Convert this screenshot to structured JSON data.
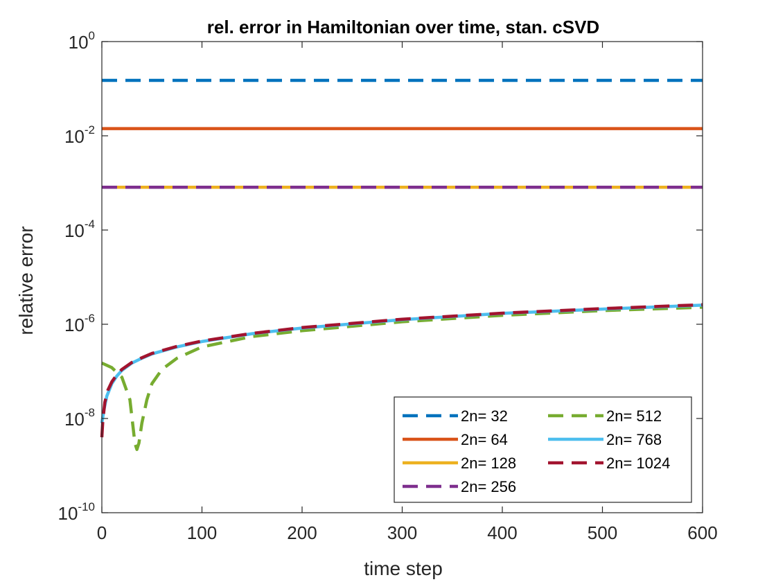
{
  "chart_data": {
    "type": "line",
    "title": "rel. error in Hamiltonian over time, stan. cSVD",
    "xlabel": "time step",
    "ylabel": "relative error",
    "xlim": [
      0,
      600
    ],
    "ylim_log10": [
      -10,
      0
    ],
    "yscale": "log",
    "x_ticks": [
      0,
      100,
      200,
      300,
      400,
      500,
      600
    ],
    "x_tick_labels": [
      "0",
      "100",
      "200",
      "300",
      "400",
      "500",
      "600"
    ],
    "y_ticks": [
      {
        "exp": 0,
        "base": "10",
        "sup": "0"
      },
      {
        "exp": -2,
        "base": "10",
        "sup": "-2"
      },
      {
        "exp": -4,
        "base": "10",
        "sup": "-4"
      },
      {
        "exp": -6,
        "base": "10",
        "sup": "-6"
      },
      {
        "exp": -8,
        "base": "10",
        "sup": "-8"
      },
      {
        "exp": -10,
        "base": "10",
        "sup": "-10"
      }
    ],
    "grid": false,
    "legend_position": "bottom-right",
    "series": [
      {
        "name": "2n= 32",
        "color": "#0072BD",
        "dash": "dashed",
        "x": [
          0,
          600
        ],
        "y": [
          0.15,
          0.15
        ]
      },
      {
        "name": "2n= 64",
        "color": "#D95319",
        "dash": "solid",
        "x": [
          0,
          600
        ],
        "y": [
          0.0142,
          0.0142
        ]
      },
      {
        "name": "2n= 128",
        "color": "#EDB120",
        "dash": "solid",
        "x": [
          0,
          600
        ],
        "y": [
          0.00081,
          0.00081
        ]
      },
      {
        "name": "2n= 256",
        "color": "#7E2F8E",
        "dash": "dashed",
        "x": [
          0,
          600
        ],
        "y": [
          0.00081,
          0.00081
        ]
      },
      {
        "name": "2n= 512",
        "color": "#77AC30",
        "dash": "dashed",
        "x": [
          0,
          10,
          20,
          28,
          33,
          35,
          37,
          40,
          45,
          50,
          60,
          75,
          100,
          150,
          200,
          300,
          400,
          500,
          600
        ],
        "y": [
          1.5e-07,
          1.2e-07,
          7.5e-08,
          2.5e-08,
          3e-09,
          2.2e-09,
          3e-09,
          8e-09,
          2.5e-08,
          5.5e-08,
          1.1e-07,
          1.9e-07,
          3.3e-07,
          5.5e-07,
          7.3e-07,
          1.13e-06,
          1.55e-06,
          1.95e-06,
          2.3e-06
        ]
      },
      {
        "name": "2n= 768",
        "color": "#4DBEEE",
        "dash": "solid",
        "x": [
          0,
          2,
          5,
          10,
          15,
          20,
          30,
          40,
          50,
          75,
          100,
          150,
          200,
          300,
          400,
          500,
          600
        ],
        "y": [
          8e-09,
          1.5e-08,
          3e-08,
          5.5e-08,
          8e-08,
          1.05e-07,
          1.5e-07,
          1.9e-07,
          2.35e-07,
          3.3e-07,
          4.3e-07,
          6.3e-07,
          8.3e-07,
          1.25e-06,
          1.7e-06,
          2.1e-06,
          2.55e-06
        ]
      },
      {
        "name": "2n= 1024",
        "color": "#A2142F",
        "dash": "dashed",
        "x": [
          0,
          1,
          3,
          6,
          10,
          15,
          20,
          30,
          40,
          50,
          75,
          100,
          150,
          200,
          300,
          400,
          500,
          600
        ],
        "y": [
          4e-09,
          9e-09,
          2.2e-08,
          4e-08,
          6e-08,
          8.5e-08,
          1.1e-07,
          1.55e-07,
          1.95e-07,
          2.4e-07,
          3.4e-07,
          4.4e-07,
          6.4e-07,
          8.5e-07,
          1.28e-06,
          1.72e-06,
          2.15e-06,
          2.6e-06
        ]
      }
    ],
    "legend_order": [
      "2n= 32",
      "2n= 64",
      "2n= 128",
      "2n= 256",
      "2n= 512",
      "2n= 768",
      "2n= 1024"
    ]
  }
}
